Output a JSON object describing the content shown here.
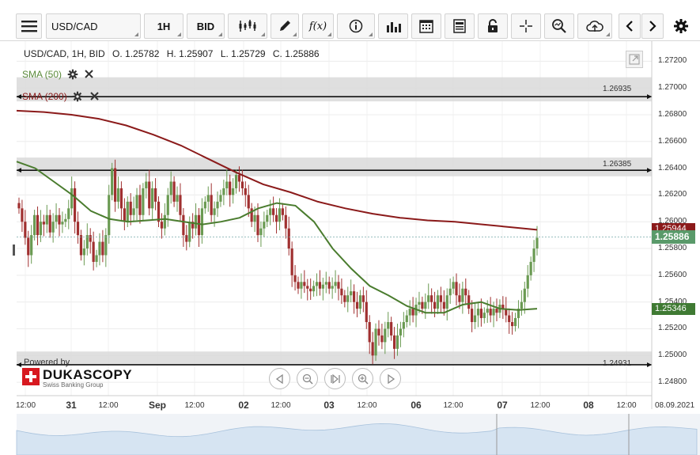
{
  "toolbar": {
    "symbol": "USD/CAD",
    "timeframe": "1H",
    "side": "BID",
    "function_label": "f(x)"
  },
  "ohlc": {
    "symbol_line": "USD/CAD, 1H, BID",
    "open": "O. 1.25782",
    "high": "H. 1.25907",
    "low": "L. 1.25729",
    "close": "C. 1.25886"
  },
  "indicators": [
    {
      "name": "SMA (50)",
      "color": "#4a7c2e"
    },
    {
      "name": "SMA (200)",
      "color": "#8b1a1a"
    }
  ],
  "levels": [
    "1.26935",
    "1.26385",
    "1.24931"
  ],
  "price_tags": {
    "sma200": "1.25944",
    "last": "1.25886",
    "sma50": "1.25346"
  },
  "y_ticks": [
    "1.27200",
    "1.27000",
    "1.26800",
    "1.26600",
    "1.26400",
    "1.26200",
    "1.26000",
    "1.25800",
    "1.25600",
    "1.25400",
    "1.25200",
    "1.25000",
    "1.24800"
  ],
  "x_ticks": [
    {
      "label": "12:00",
      "bold": false
    },
    {
      "label": "31",
      "bold": true
    },
    {
      "label": "12:00",
      "bold": false
    },
    {
      "label": "Sep",
      "bold": true
    },
    {
      "label": "12:00",
      "bold": false
    },
    {
      "label": "02",
      "bold": true
    },
    {
      "label": "12:00",
      "bold": false
    },
    {
      "label": "03",
      "bold": true
    },
    {
      "label": "12:00",
      "bold": false
    },
    {
      "label": "06",
      "bold": true
    },
    {
      "label": "12:00",
      "bold": false
    },
    {
      "label": "07",
      "bold": true
    },
    {
      "label": "12:00",
      "bold": false
    },
    {
      "label": "08",
      "bold": true
    },
    {
      "label": "12:00",
      "bold": false
    },
    {
      "label": "08.09.2021",
      "bold": false
    }
  ],
  "branding": {
    "powered_by": "Powered by",
    "name": "DUKASCOPY",
    "tagline": "Swiss Banking Group"
  },
  "colors": {
    "up": "#6a9a52",
    "down": "#a03030",
    "sma50": "#4a7c2e",
    "sma200": "#8b1a1a",
    "last_price": "#5a9a6a",
    "sma50_tag": "#3f7a33",
    "sma200_tag": "#8b1a1a"
  },
  "chart_data": {
    "type": "candlestick",
    "y_range": [
      1.247,
      1.2735
    ],
    "closes": [
      1.261,
      1.26,
      1.2588,
      1.2575,
      1.259,
      1.2605,
      1.259,
      1.26,
      1.2598,
      1.2605,
      1.2592,
      1.26,
      1.2605,
      1.2598,
      1.26,
      1.2602,
      1.261,
      1.2625,
      1.26,
      1.259,
      1.2575,
      1.258,
      1.259,
      1.2585,
      1.257,
      1.2575,
      1.2585,
      1.2575,
      1.259,
      1.262,
      1.264,
      1.2615,
      1.2625,
      1.261,
      1.26,
      1.2615,
      1.2605,
      1.261,
      1.262,
      1.2605,
      1.2625,
      1.263,
      1.261,
      1.2625,
      1.2615,
      1.26,
      1.2595,
      1.2605,
      1.262,
      1.263,
      1.2615,
      1.262,
      1.2605,
      1.259,
      1.2585,
      1.26,
      1.2595,
      1.2605,
      1.259,
      1.261,
      1.2615,
      1.262,
      1.2605,
      1.261,
      1.2615,
      1.262,
      1.2625,
      1.263,
      1.262,
      1.2625,
      1.2635,
      1.263,
      1.2625,
      1.262,
      1.261,
      1.26,
      1.2605,
      1.259,
      1.2595,
      1.26,
      1.2605,
      1.261,
      1.2605,
      1.26,
      1.261,
      1.2605,
      1.2595,
      1.258,
      1.256,
      1.2555,
      1.255,
      1.2555,
      1.2552,
      1.255,
      1.2548,
      1.2552,
      1.2555,
      1.255,
      1.2553,
      1.2555,
      1.255,
      1.2552,
      1.2555,
      1.255,
      1.2545,
      1.254,
      1.2545,
      1.2548,
      1.254,
      1.2535,
      1.2545,
      1.254,
      1.2525,
      1.251,
      1.25,
      1.252,
      1.2515,
      1.251,
      1.252,
      1.2525,
      1.2515,
      1.2505,
      1.2515,
      1.252,
      1.2525,
      1.253,
      1.2535,
      1.253,
      1.2538,
      1.254,
      1.2535,
      1.254,
      1.2545,
      1.254,
      1.2535,
      1.2545,
      1.254,
      1.2535,
      1.2545,
      1.255,
      1.2555,
      1.2545,
      1.254,
      1.255,
      1.2545,
      1.2535,
      1.2525,
      1.253,
      1.2535,
      1.2528,
      1.2532,
      1.2535,
      1.253,
      1.2535,
      1.2532,
      1.2538,
      1.2535,
      1.253,
      1.2525,
      1.2522,
      1.2528,
      1.2535,
      1.254,
      1.255,
      1.256,
      1.257,
      1.258,
      1.2588
    ]
  }
}
